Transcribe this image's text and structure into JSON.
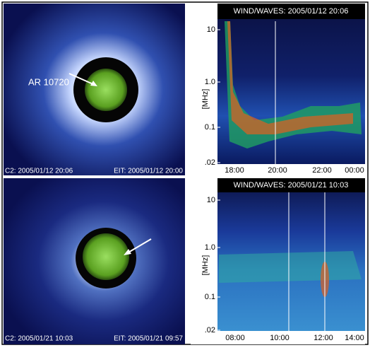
{
  "panels": [
    {
      "caption_left": "C2: 2005/01/12 20:06",
      "caption_right": "EIT: 2005/01/12 20:00",
      "annotation": "AR 10720"
    },
    {
      "title": "WIND/WAVES: 2005/01/12 20:06",
      "y_label": "[MHz]",
      "y_ticks": [
        "10",
        "1.0",
        "0.1",
        ".02"
      ],
      "x_ticks": [
        "18:00",
        "20:00",
        "22:00",
        "00:00"
      ]
    },
    {
      "caption_left": "C2: 2005/01/21 10:03",
      "caption_right": "EIT: 2005/01/21 09:57"
    },
    {
      "title": "WIND/WAVES: 2005/01/21 10:03",
      "y_label": "[MHz]",
      "y_ticks": [
        "10",
        "1.0",
        "0.1",
        ".02"
      ],
      "x_ticks": [
        "08:00",
        "10:00",
        "12:00",
        "14:00"
      ]
    }
  ]
}
